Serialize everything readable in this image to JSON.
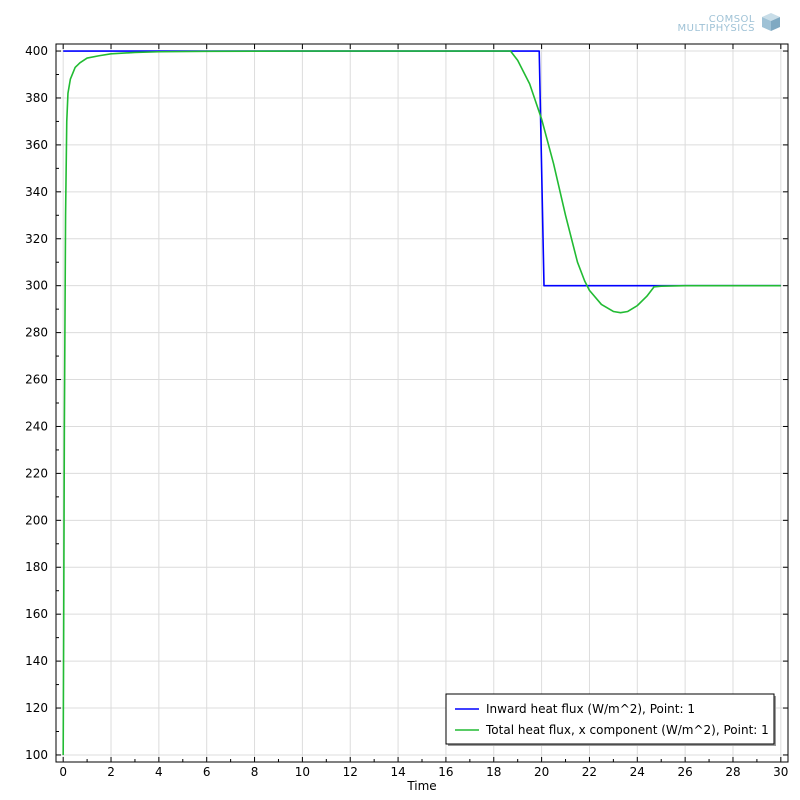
{
  "logo": {
    "line1": "COMSOL",
    "line2": "MULTIPHYSICS"
  },
  "chart_data": {
    "type": "line",
    "xlabel": "Time",
    "ylabel": "",
    "xlim": [
      -0.3,
      30.3
    ],
    "ylim": [
      97,
      403
    ],
    "x_ticks": [
      0,
      2,
      4,
      6,
      8,
      10,
      12,
      14,
      16,
      18,
      20,
      22,
      24,
      26,
      28,
      30
    ],
    "y_ticks": [
      100,
      120,
      140,
      160,
      180,
      200,
      220,
      240,
      260,
      280,
      300,
      320,
      340,
      360,
      380,
      400
    ],
    "grid": true,
    "legend_position": "bottom-right",
    "series": [
      {
        "name": "Inward heat flux (W/m^2), Point: 1",
        "color": "#0000ff",
        "x": [
          0,
          19.9,
          20.1,
          30
        ],
        "y": [
          400,
          400,
          300,
          300
        ]
      },
      {
        "name": "Total heat flux, x component (W/m^2), Point: 1",
        "color": "#22bb33",
        "x": [
          0,
          0.02,
          0.05,
          0.1,
          0.15,
          0.2,
          0.3,
          0.5,
          0.7,
          1.0,
          1.5,
          2.0,
          3.0,
          4.0,
          6.0,
          10.0,
          14.0,
          18.0,
          18.7,
          19.0,
          19.5,
          20.0,
          20.5,
          21.0,
          21.5,
          21.8,
          22.0,
          22.5,
          23.0,
          23.3,
          23.6,
          24.0,
          24.4,
          24.7,
          25.0,
          26.0,
          28.0,
          30.0
        ],
        "y": [
          100,
          150,
          240,
          330,
          370,
          382,
          388,
          393,
          395,
          397,
          398,
          398.8,
          399.4,
          399.7,
          399.9,
          400,
          400,
          400,
          400,
          396,
          386,
          371,
          352,
          330,
          310,
          302,
          298,
          292,
          289,
          288.5,
          289,
          291.5,
          295.5,
          299.5,
          299.8,
          300,
          300,
          300
        ]
      }
    ]
  }
}
